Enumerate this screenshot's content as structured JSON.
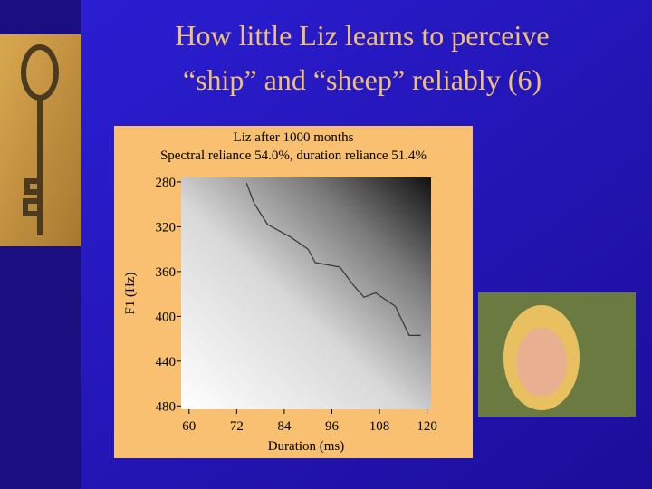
{
  "slide": {
    "title_lines": [
      "How little Liz learns to perceive",
      "“ship” and “sheep” reliably (6)"
    ]
  },
  "chart_data": {
    "type": "line",
    "title": "Liz after 1000 months",
    "subtitle": "Spectral reliance 54.0%, duration reliance 51.4%",
    "xlabel": "Duration (ms)",
    "ylabel": "F1 (Hz)",
    "x": [
      74.5,
      76.4,
      79.8,
      85.5,
      90,
      91.8,
      98,
      101.4,
      104.1,
      107,
      112,
      115.5,
      118.4
    ],
    "series": [
      {
        "values": [
          281,
          299,
          318,
          329,
          340,
          352,
          356,
          372,
          383,
          379,
          391,
          417,
          417
        ],
        "color": "#333333"
      }
    ],
    "xlim": [
      58,
      121
    ],
    "ylim": [
      276,
      483
    ],
    "y_inverted": true,
    "xticks": [
      60,
      72,
      84,
      96,
      108,
      120
    ],
    "yticks": [
      280,
      320,
      360,
      400,
      440,
      480
    ]
  }
}
